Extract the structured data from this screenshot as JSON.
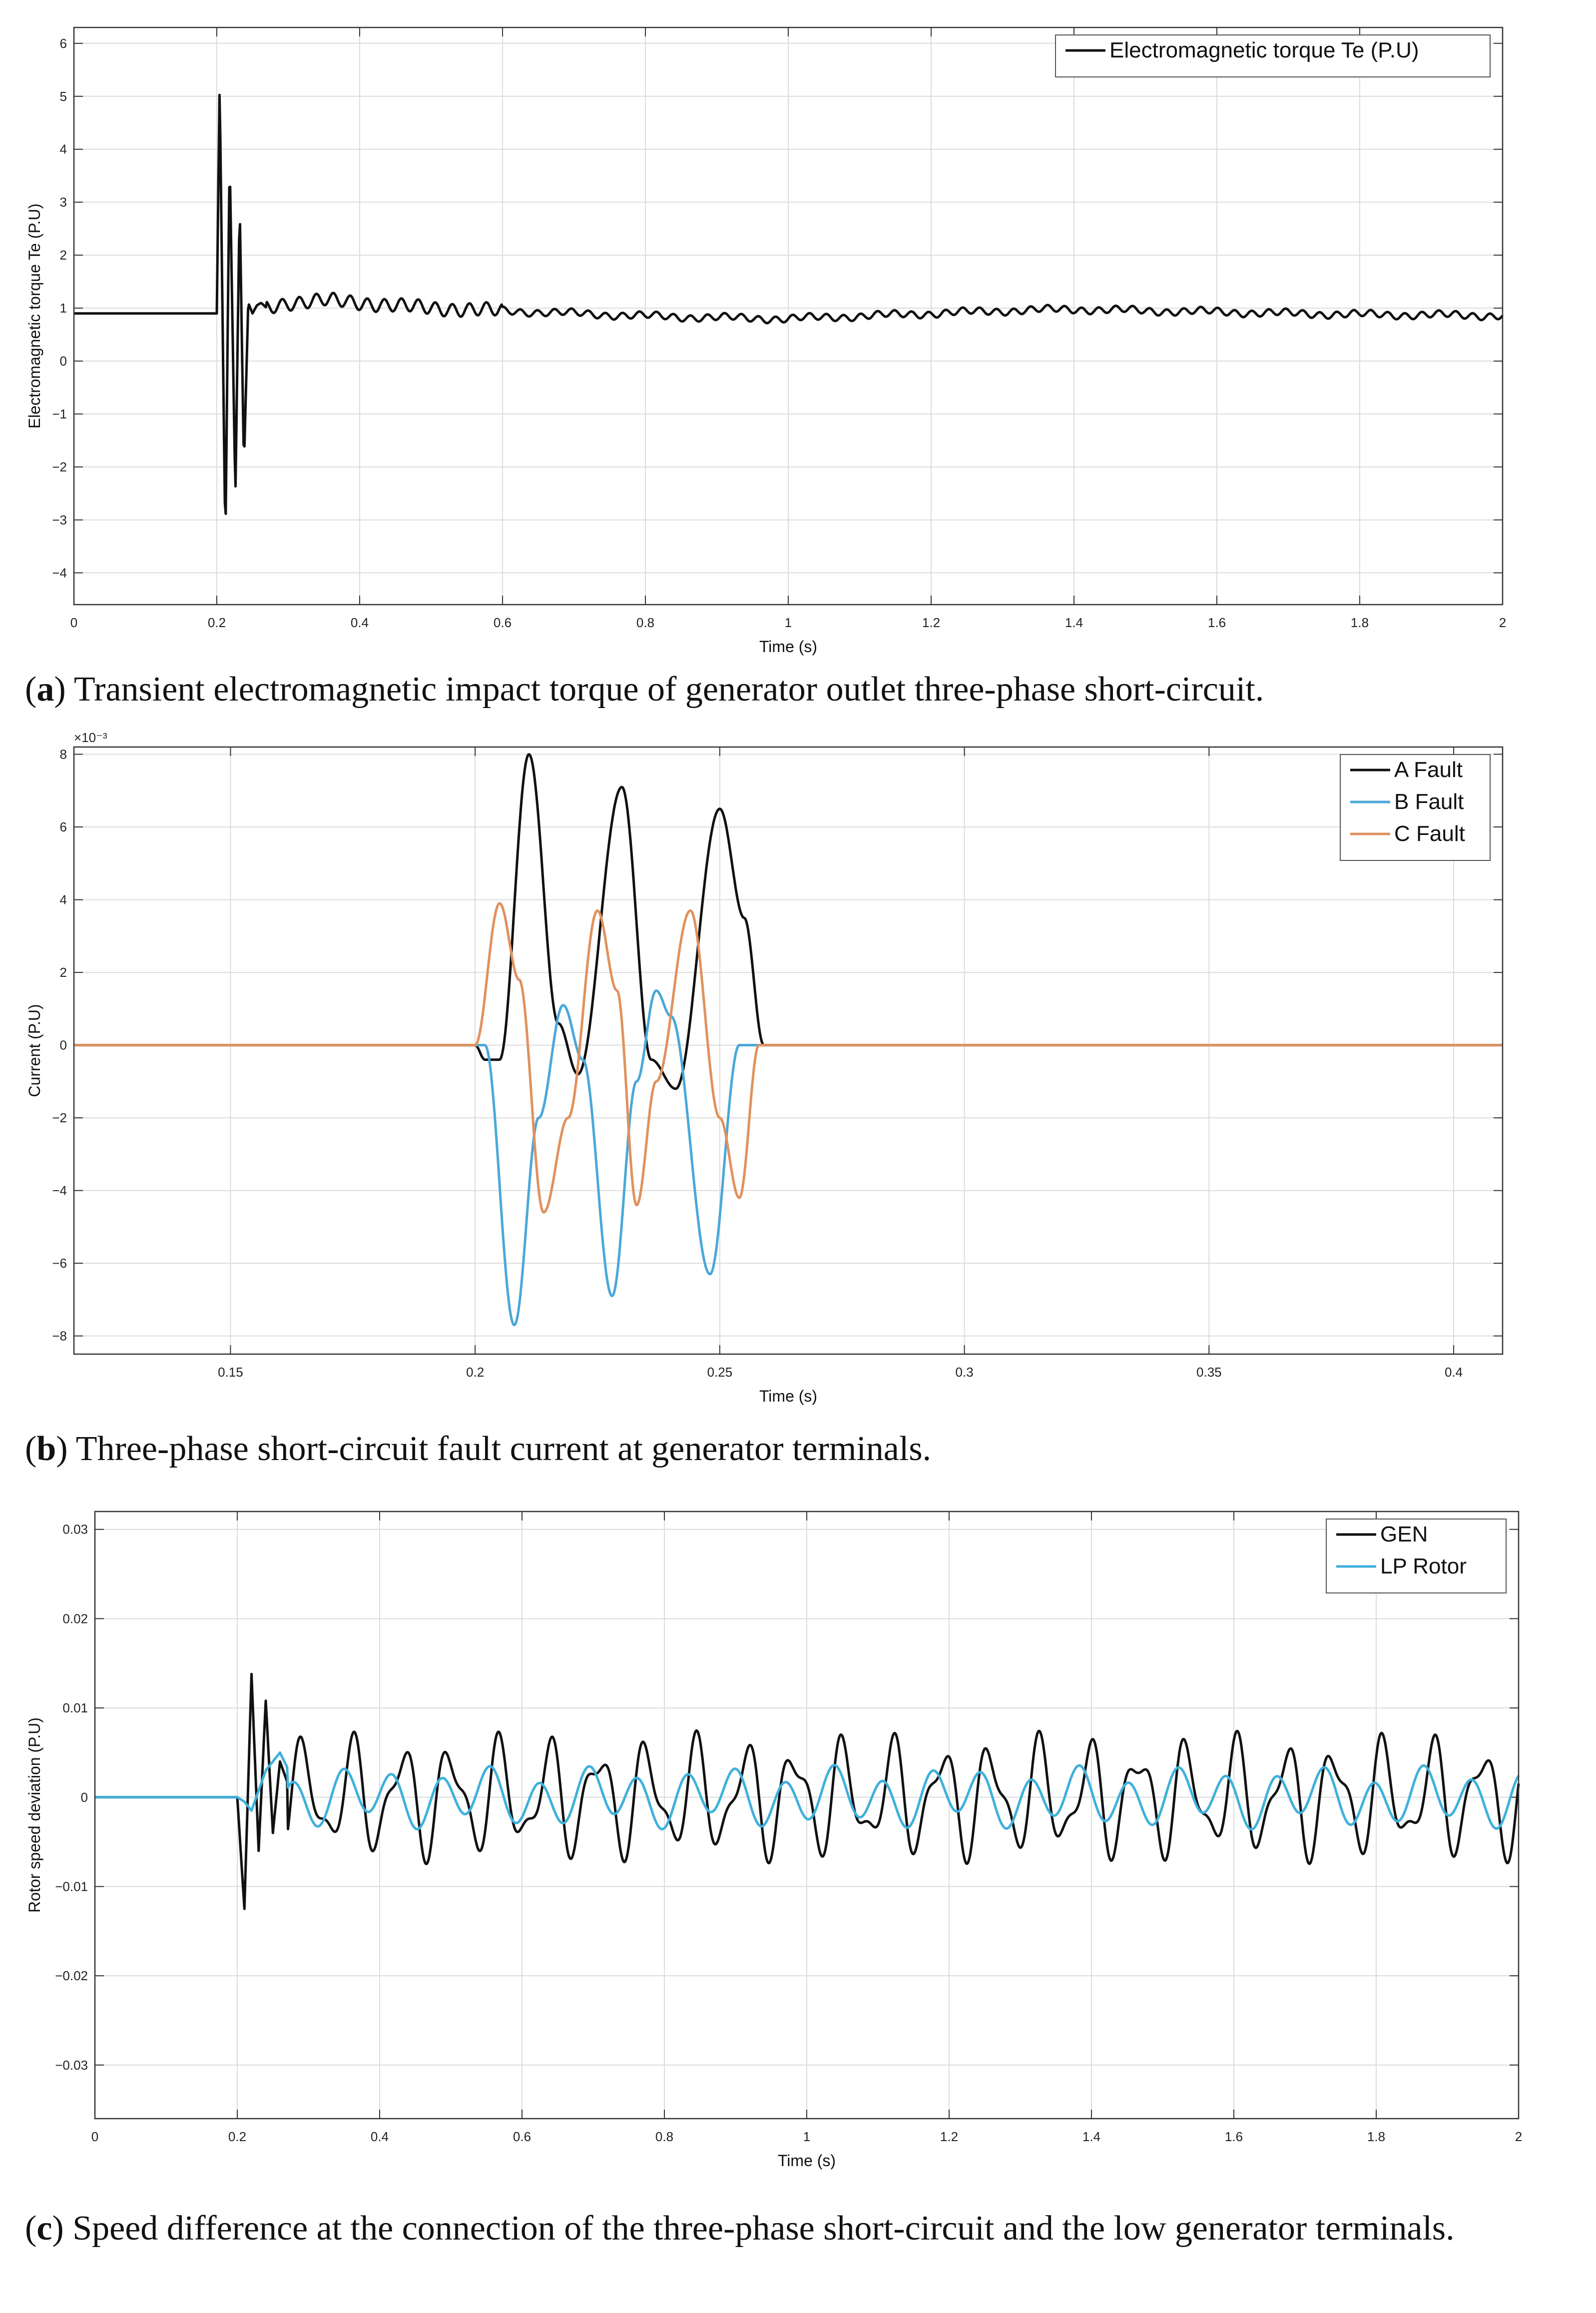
{
  "chart_data": [
    {
      "id": "a",
      "type": "line",
      "caption_letter": "a",
      "caption_text": " Transient electromagnetic impact torque of generator outlet three-phase short-circuit.",
      "xlabel": "Time  (s)",
      "ylabel": "Electromagnetic torque  Te (P.U)",
      "xlim": [
        0,
        2
      ],
      "ylim": [
        -4.6,
        6.3
      ],
      "xticks": [
        0,
        0.2,
        0.4,
        0.6,
        0.8,
        1,
        1.2,
        1.4,
        1.6,
        1.8,
        2
      ],
      "xtick_labels": [
        "0",
        "0.2",
        "0.4",
        "0.6",
        "0.8",
        "1",
        "1.2",
        "1.4",
        "1.6",
        "1.8",
        "2"
      ],
      "yticks": [
        -4,
        -3,
        -2,
        -1,
        0,
        1,
        2,
        3,
        4,
        5,
        6
      ],
      "ytick_labels": [
        "−4",
        "−3",
        "−2",
        "−1",
        "0",
        "1",
        "2",
        "3",
        "4",
        "5",
        "6"
      ],
      "grid": true,
      "legend_position": "top-right",
      "series": [
        {
          "name": "Electromagnetic torque  Te (P.U)",
          "color": "#111111",
          "x": [
            0,
            0.2,
            0.204,
            0.212,
            0.218,
            0.226,
            0.232,
            0.238,
            0.244,
            0.25,
            0.256,
            0.262,
            0.27,
            0.3,
            0.35,
            0.4,
            0.45,
            0.5,
            0.6,
            0.7,
            0.8,
            0.9,
            1.0,
            1.1,
            1.2,
            1.3,
            1.4,
            1.5,
            1.6,
            1.7,
            1.8,
            1.9,
            2.0
          ],
          "y": [
            0.9,
            0.9,
            5.3,
            -3.5,
            3.9,
            -2.6,
            3.0,
            -2.0,
            1.1,
            0.9,
            1.05,
            1.1,
            1.0,
            1.1,
            1.15,
            1.1,
            1.05,
            1.0,
            0.95,
            0.9,
            0.85,
            0.82,
            0.8,
            0.85,
            0.9,
            0.95,
            0.98,
            0.95,
            0.93,
            0.9,
            0.88,
            0.87,
            0.86
          ]
        }
      ]
    },
    {
      "id": "b",
      "type": "line",
      "caption_letter": "b",
      "caption_text": " Three-phase short-circuit fault current at generator terminals.",
      "xlabel": "Time  (s)",
      "ylabel": "Current  (P.U)",
      "exponent_label": "×10⁻³",
      "xlim": [
        0.118,
        0.41
      ],
      "ylim": [
        -8.5,
        8.2
      ],
      "xticks": [
        0.15,
        0.2,
        0.25,
        0.3,
        0.35,
        0.4
      ],
      "xtick_labels": [
        "0.15",
        "0.2",
        "0.25",
        "0.3",
        "0.35",
        "0.4"
      ],
      "yticks": [
        -8,
        -6,
        -4,
        -2,
        0,
        2,
        4,
        6,
        8
      ],
      "ytick_labels": [
        "−8",
        "−6",
        "−4",
        "−2",
        "0",
        "2",
        "4",
        "6",
        "8"
      ],
      "grid": true,
      "legend_position": "top-right",
      "series": [
        {
          "name": "A  Fault",
          "color": "#111111",
          "x": [
            0.118,
            0.2,
            0.202,
            0.205,
            0.211,
            0.217,
            0.221,
            0.23,
            0.236,
            0.241,
            0.25,
            0.255,
            0.259,
            0.41
          ],
          "y": [
            0,
            0,
            -0.4,
            -0.4,
            8.0,
            0.6,
            -0.8,
            7.1,
            -0.4,
            -1.2,
            6.5,
            3.5,
            0,
            0
          ]
        },
        {
          "name": "B  Fault",
          "color": "#4aa8d8",
          "x": [
            0.118,
            0.2,
            0.202,
            0.208,
            0.213,
            0.218,
            0.222,
            0.228,
            0.233,
            0.237,
            0.24,
            0.248,
            0.254,
            0.41
          ],
          "y": [
            0,
            0,
            0,
            -7.7,
            -2.0,
            1.1,
            -0.4,
            -6.9,
            -1.0,
            1.5,
            0.8,
            -6.3,
            0,
            0
          ]
        },
        {
          "name": "C  Fault",
          "color": "#e0915e",
          "x": [
            0.118,
            0.2,
            0.205,
            0.209,
            0.214,
            0.219,
            0.225,
            0.229,
            0.233,
            0.237,
            0.244,
            0.25,
            0.254,
            0.258,
            0.41
          ],
          "y": [
            0,
            0,
            3.9,
            1.8,
            -4.6,
            -2.0,
            3.7,
            1.5,
            -4.4,
            -1.0,
            3.7,
            -2.0,
            -4.2,
            0,
            0
          ]
        }
      ]
    },
    {
      "id": "c",
      "type": "line",
      "caption_letter": "c",
      "caption_text": " Speed difference at the connection of the three-phase short-circuit and the low generator terminals.",
      "xlabel": "Time  (s)",
      "ylabel": "Rotor speed deviation  (P.U)",
      "xlim": [
        0,
        2
      ],
      "ylim": [
        -0.036,
        0.032
      ],
      "xticks": [
        0,
        0.2,
        0.4,
        0.6,
        0.8,
        1,
        1.2,
        1.4,
        1.6,
        1.8,
        2
      ],
      "xtick_labels": [
        "0",
        "0.2",
        "0.4",
        "0.6",
        "0.8",
        "1",
        "1.2",
        "1.4",
        "1.6",
        "1.8",
        "2"
      ],
      "yticks": [
        -0.03,
        -0.02,
        -0.01,
        0,
        0.01,
        0.02,
        0.03
      ],
      "ytick_labels": [
        "−0.03",
        "−0.02",
        "−0.01",
        "0",
        "0.01",
        "0.02",
        "0.03"
      ],
      "grid": true,
      "legend_position": "top-right",
      "series": [
        {
          "name": "GEN",
          "color": "#111111",
          "x": [
            0,
            0.2,
            0.21,
            0.22,
            0.23,
            0.24,
            0.25,
            0.26,
            0.3,
            0.35,
            0.4,
            0.5,
            0.6,
            0.7,
            0.8,
            0.9,
            1.0,
            1.2,
            1.4,
            1.6,
            1.8,
            2.0
          ],
          "y": [
            0,
            0,
            -0.0125,
            0.0138,
            -0.006,
            0.0108,
            -0.004,
            0.004,
            -0.005,
            0.007,
            0.006,
            -0.007,
            0.006,
            0.006,
            0.007,
            -0.007,
            0.0065,
            0.006,
            0.0055,
            0.006,
            0.005,
            0.003
          ]
        },
        {
          "name": "LP Rotor",
          "color": "#3fb0dc",
          "x": [
            0,
            0.2,
            0.21,
            0.22,
            0.24,
            0.26,
            0.3,
            0.4,
            0.5,
            0.6,
            0.8,
            1.0,
            1.2,
            1.4,
            1.6,
            1.8,
            2.0
          ],
          "y": [
            0,
            0,
            -0.0005,
            -0.0015,
            0.003,
            0.005,
            -0.0015,
            0.0045,
            0.002,
            -0.003,
            0.0015,
            -0.003,
            0.003,
            -0.003,
            0.002,
            0.0025,
            -0.002
          ]
        }
      ]
    }
  ]
}
